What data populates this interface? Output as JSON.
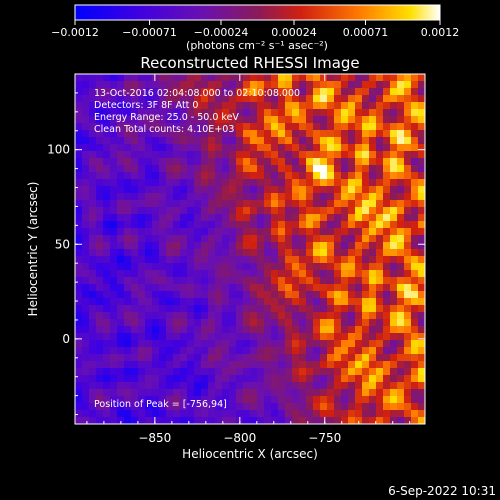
{
  "chart_data": {
    "type": "heatmap",
    "title": "Reconstructed RHESSI Image",
    "xlabel": "Heliocentric X (arcsec)",
    "ylabel": "Heliocentric Y (arcsec)",
    "xlim": [
      -897,
      -691
    ],
    "ylim": [
      -45,
      140
    ],
    "x_ticks": [
      -850,
      -800,
      -750
    ],
    "x_tick_labels": [
      "−850",
      "−800",
      "−750"
    ],
    "y_ticks": [
      0,
      50,
      100
    ],
    "y_tick_labels": [
      "0",
      "50",
      "100"
    ],
    "colorbar": {
      "range": [
        -0.0012,
        0.0012
      ],
      "ticks": [
        -0.0012,
        -0.00071,
        -0.00024,
        0.00024,
        0.00071,
        0.0012
      ],
      "tick_labels": [
        "−0.0012",
        "−0.00071",
        "−0.00024",
        "0.00024",
        "0.00071",
        "0.0012"
      ],
      "unit_label": "(photons cm⁻² s⁻¹ asec⁻²)",
      "colormap": [
        "#0000ff",
        "#6a00c8",
        "#7c1a7c",
        "#c41e10",
        "#ff7a00",
        "#ffe000",
        "#ffffff"
      ]
    },
    "annotations": {
      "time_range": "13-Oct-2016 02:04:08.000 to 02:10:08.000",
      "detectors": "Detectors: 3F 8F  Att 0",
      "energy": "Energy Range: 25.0 - 50.0 keV",
      "method": "Clean    Total counts: 4.10E+03",
      "peak": "Position of Peak = [-756,94]"
    },
    "peak_position": [
      -756,
      94
    ]
  },
  "footer": {
    "timestamp": "6-Sep-2022 10:31"
  }
}
